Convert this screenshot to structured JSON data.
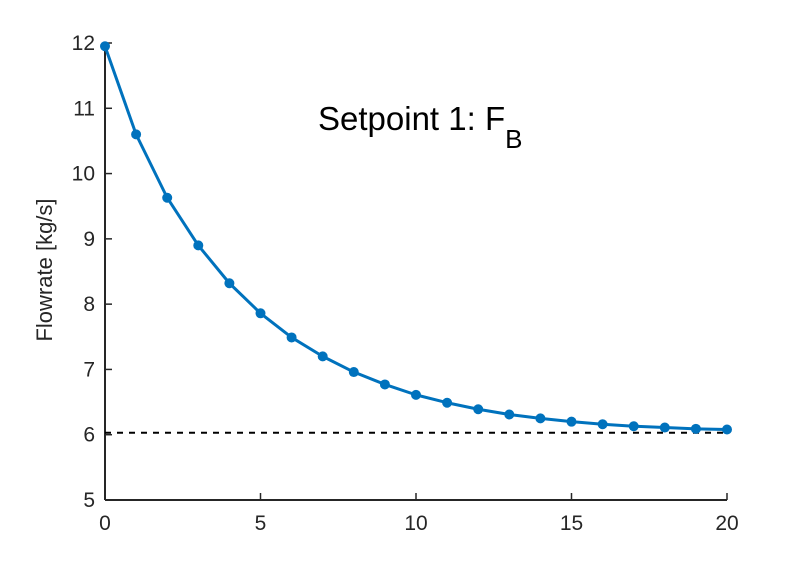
{
  "chart_data": {
    "type": "line",
    "title": "",
    "xlabel": "",
    "ylabel": "Flowrate [kg/s]",
    "xlim": [
      0,
      20
    ],
    "ylim": [
      5,
      12
    ],
    "xticks": [
      0,
      5,
      10,
      15,
      20
    ],
    "yticks": [
      5,
      6,
      7,
      8,
      9,
      10,
      11,
      12
    ],
    "grid": false,
    "annotation": {
      "main": "Setpoint 1: F",
      "subscript": "B"
    },
    "colors": {
      "series": "#0072BD",
      "reference": "#000000",
      "axis": "#262626"
    },
    "series": [
      {
        "style": "solid-with-markers",
        "x": [
          0,
          1,
          2,
          3,
          4,
          5,
          6,
          7,
          8,
          9,
          10,
          11,
          12,
          13,
          14,
          15,
          16,
          17,
          18,
          19,
          20
        ],
        "y": [
          11.95,
          10.6,
          9.63,
          8.9,
          8.32,
          7.86,
          7.49,
          7.2,
          6.96,
          6.77,
          6.61,
          6.49,
          6.39,
          6.31,
          6.25,
          6.2,
          6.16,
          6.13,
          6.11,
          6.09,
          6.08
        ]
      },
      {
        "style": "dashed",
        "x": [
          0,
          20
        ],
        "y": [
          6.03,
          6.03
        ]
      }
    ]
  }
}
